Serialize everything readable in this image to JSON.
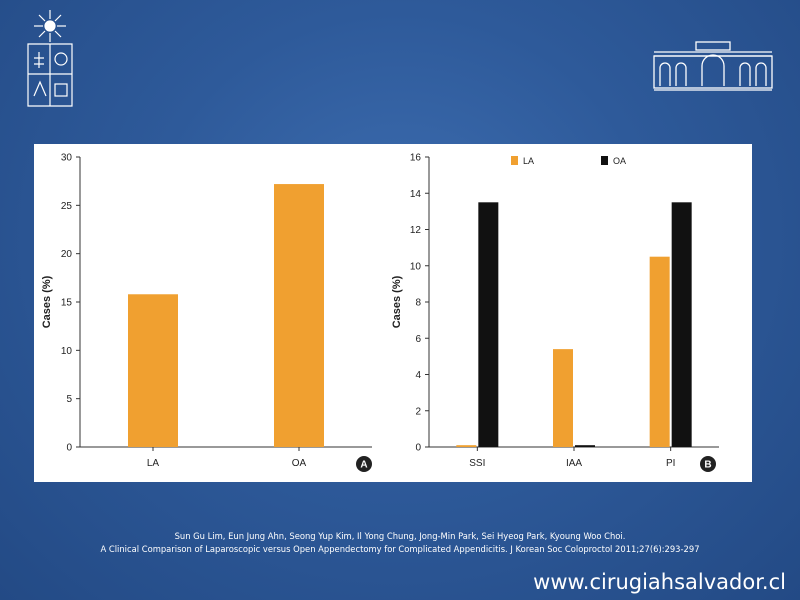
{
  "colors": {
    "background": "#2e5a9a",
    "la_bar": "#f0a030",
    "oa_bar": "#111111",
    "text": "#ffffff"
  },
  "logos": {
    "left": "university-shield-logo",
    "right": "building-facade-logo"
  },
  "chart_data": [
    {
      "type": "bar",
      "categories": [
        "LA",
        "OA"
      ],
      "values": [
        15.8,
        27.2
      ],
      "ylabel": "Cases (%)",
      "ylim": [
        0,
        30
      ],
      "yticks": [
        0,
        5,
        10,
        15,
        20,
        25,
        30
      ],
      "panel_label": "A",
      "grid": false
    },
    {
      "type": "bar",
      "categories": [
        "SSI",
        "IAA",
        "PI"
      ],
      "series": [
        {
          "name": "LA",
          "values": [
            0.1,
            5.4,
            10.5
          ]
        },
        {
          "name": "OA",
          "values": [
            13.5,
            0.1,
            13.5
          ]
        }
      ],
      "ylabel": "Cases (%)",
      "ylim": [
        0,
        16
      ],
      "yticks": [
        0,
        2,
        4,
        6,
        8,
        10,
        12,
        14,
        16
      ],
      "panel_label": "B",
      "legend": "top",
      "grid": false
    }
  ],
  "citation": {
    "authors": "Sun Gu Lim, Eun Jung Ahn, Seong Yup Kim, Il Yong Chung, Jong-Min Park, Sei Hyeog Park, Kyoung Woo Choi.",
    "reference": "A Clinical Comparison of Laparoscopic versus Open Appendectomy for Complicated Appendicitis. J Korean Soc Coloproctol 2011;27(6):293-297"
  },
  "website": "www.cirugiahsalvador.cl"
}
